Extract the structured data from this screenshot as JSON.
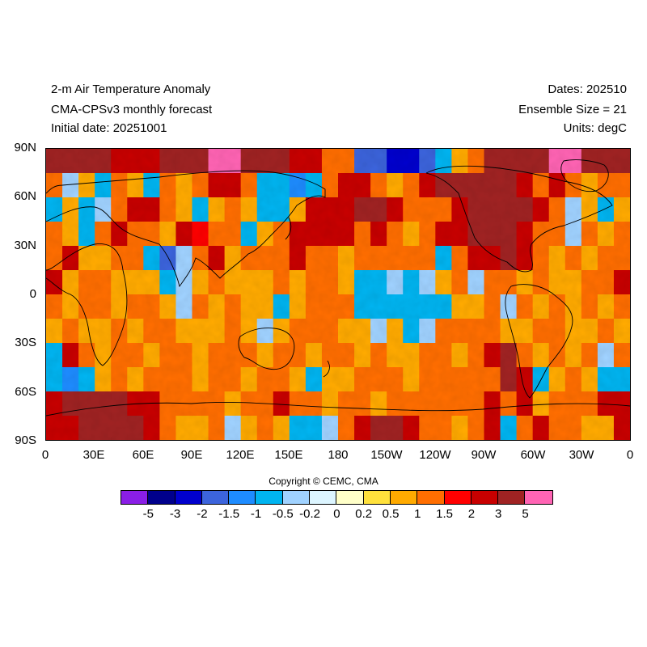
{
  "header": {
    "title": "2-m Air Temperature Anomaly",
    "model": "CMA-CPSv3 monthly forecast",
    "initial_date": "Initial date: 20251001",
    "dates": "Dates: 202510",
    "ensemble": "Ensemble Size = 21",
    "units": "Units: degC"
  },
  "axes": {
    "lat_labels": [
      "90N",
      "60N",
      "30N",
      "0",
      "30S",
      "60S",
      "90S"
    ],
    "lon_labels": [
      "0",
      "30E",
      "60E",
      "90E",
      "120E",
      "150E",
      "180",
      "150W",
      "120W",
      "90W",
      "60W",
      "30W",
      "0"
    ]
  },
  "copyright": "Copyright © CEMC, CMA",
  "colorbar": {
    "colors": [
      "#8a1ee6",
      "#00008c",
      "#0000cd",
      "#3c64dc",
      "#1e8cff",
      "#00b4f0",
      "#a0d2ff",
      "#dcf5ff",
      "#ffffc8",
      "#ffe13c",
      "#ffaa00",
      "#ff6e00",
      "#ff0000",
      "#c80000",
      "#a02323",
      "#ff64b4"
    ],
    "labels": [
      "-5",
      "-3",
      "-2",
      "-1.5",
      "-1",
      "-0.5",
      "-0.2",
      "0",
      "0.2",
      "0.5",
      "1",
      "1.5",
      "2",
      "3",
      "5"
    ]
  },
  "map": {
    "projection": "cylindrical equidistant",
    "variable": "2-m air temperature anomaly",
    "color_levels": [
      -5,
      -3,
      -2,
      -1.5,
      -1,
      -0.5,
      -0.2,
      0,
      0.2,
      0.5,
      1,
      1.5,
      2,
      3,
      5
    ],
    "pattern": [
      [
        3,
        3,
        3,
        3,
        2,
        2,
        2,
        3,
        3,
        3,
        5,
        5,
        3,
        3,
        3,
        2,
        2,
        1,
        1,
        -2,
        -2,
        -3,
        -3,
        -2,
        -1,
        0.5,
        1,
        3,
        3,
        3,
        3,
        5,
        5,
        3,
        3,
        3
      ],
      [
        1,
        -0.5,
        0.5,
        -1,
        1,
        0.5,
        -1,
        1,
        0.5,
        1,
        2,
        2,
        1,
        -1,
        -1,
        -1.5,
        -1,
        1,
        2,
        2,
        1,
        0.5,
        1,
        2,
        3,
        3,
        3,
        3,
        3,
        2,
        1,
        2,
        1,
        0.5,
        1,
        1
      ],
      [
        -1,
        0.5,
        -1,
        -0.5,
        1,
        2,
        2,
        1,
        0.5,
        -1,
        0.5,
        1,
        0.5,
        -1,
        -1,
        0.5,
        2,
        2,
        2,
        3,
        3,
        2,
        1,
        1,
        1,
        2,
        3,
        3,
        3,
        3,
        2,
        1,
        -0.5,
        0.5,
        -1,
        0.5
      ],
      [
        1,
        0.5,
        -1,
        1,
        2,
        1,
        1,
        0.5,
        2,
        1.5,
        1,
        1,
        -1,
        0.5,
        1,
        2,
        2,
        2,
        2,
        1,
        2,
        1,
        0.5,
        1,
        2,
        2,
        3,
        3,
        3,
        2,
        1,
        1,
        -0.5,
        1,
        0.5,
        1
      ],
      [
        1,
        2,
        0.5,
        0.5,
        1,
        1,
        -1,
        -2,
        -0.5,
        1,
        2,
        0.5,
        1,
        1,
        1,
        2,
        1,
        1,
        0.5,
        1,
        1,
        1,
        1,
        1,
        -1,
        1,
        2,
        2,
        3,
        2,
        1,
        0.5,
        1,
        0.5,
        1,
        1
      ],
      [
        2,
        0.5,
        1,
        1,
        0.5,
        0.5,
        0.5,
        -1,
        -0.5,
        0.5,
        1,
        0.5,
        0.5,
        0.5,
        1,
        0.5,
        1,
        1,
        0.5,
        -1,
        -1,
        -0.5,
        -1,
        -0.5,
        0.5,
        1,
        -0.5,
        1,
        1,
        0.5,
        1,
        0.5,
        0.5,
        1,
        1,
        2
      ],
      [
        1,
        0.5,
        1,
        1,
        0.5,
        1,
        1,
        0.5,
        -0.5,
        1,
        0.5,
        1,
        0.5,
        0.5,
        -1,
        0.5,
        1,
        1,
        1,
        -1,
        -1,
        -1,
        -1,
        -1,
        -1,
        0.5,
        0.5,
        1,
        -0.5,
        1,
        0.5,
        1,
        0.5,
        1,
        0.5,
        1
      ],
      [
        0.5,
        1,
        0.5,
        0.5,
        1,
        0.5,
        1,
        1,
        0.5,
        0.5,
        0.5,
        1,
        0.5,
        -0.5,
        0.5,
        1,
        1,
        1,
        0.5,
        0.5,
        -0.5,
        0.5,
        -1,
        -0.5,
        1,
        1,
        1,
        1,
        0.5,
        0.5,
        1,
        1,
        0.5,
        0.5,
        1,
        0.5
      ],
      [
        -1,
        2,
        1,
        0.5,
        1,
        1,
        0.5,
        1,
        1,
        0.5,
        1,
        1,
        1,
        0.5,
        1,
        1,
        0.5,
        1,
        1,
        0.5,
        1,
        0.5,
        0.5,
        1,
        1,
        0.5,
        1,
        2,
        3,
        1,
        0.5,
        1,
        0.5,
        1,
        -0.5,
        1
      ],
      [
        -1,
        -1.5,
        -1,
        0.5,
        1,
        0.5,
        1,
        1,
        1,
        0.5,
        1,
        1,
        0.5,
        1,
        1,
        0.5,
        -1,
        0.5,
        0.5,
        1,
        1,
        1,
        0.5,
        1,
        1,
        1,
        1,
        1,
        3,
        2,
        -1,
        0.5,
        1,
        0.5,
        -1,
        -1
      ],
      [
        2,
        3,
        3,
        3,
        3,
        2,
        2,
        1,
        1,
        1,
        1,
        0.5,
        1,
        1,
        2,
        1,
        1,
        0.5,
        1,
        1,
        0.5,
        1,
        1,
        1,
        1,
        1,
        1,
        2,
        1,
        2,
        0.5,
        1,
        1,
        1,
        2,
        2
      ],
      [
        2,
        2,
        3,
        3,
        3,
        3,
        2,
        1,
        0.5,
        0.5,
        1,
        -0.5,
        0.5,
        1,
        0.5,
        -1,
        -1,
        -0.5,
        1,
        2,
        3,
        3,
        2,
        1,
        1,
        0.5,
        1,
        2,
        -1,
        1,
        2,
        1,
        1,
        0.5,
        0.5,
        2
      ]
    ]
  }
}
